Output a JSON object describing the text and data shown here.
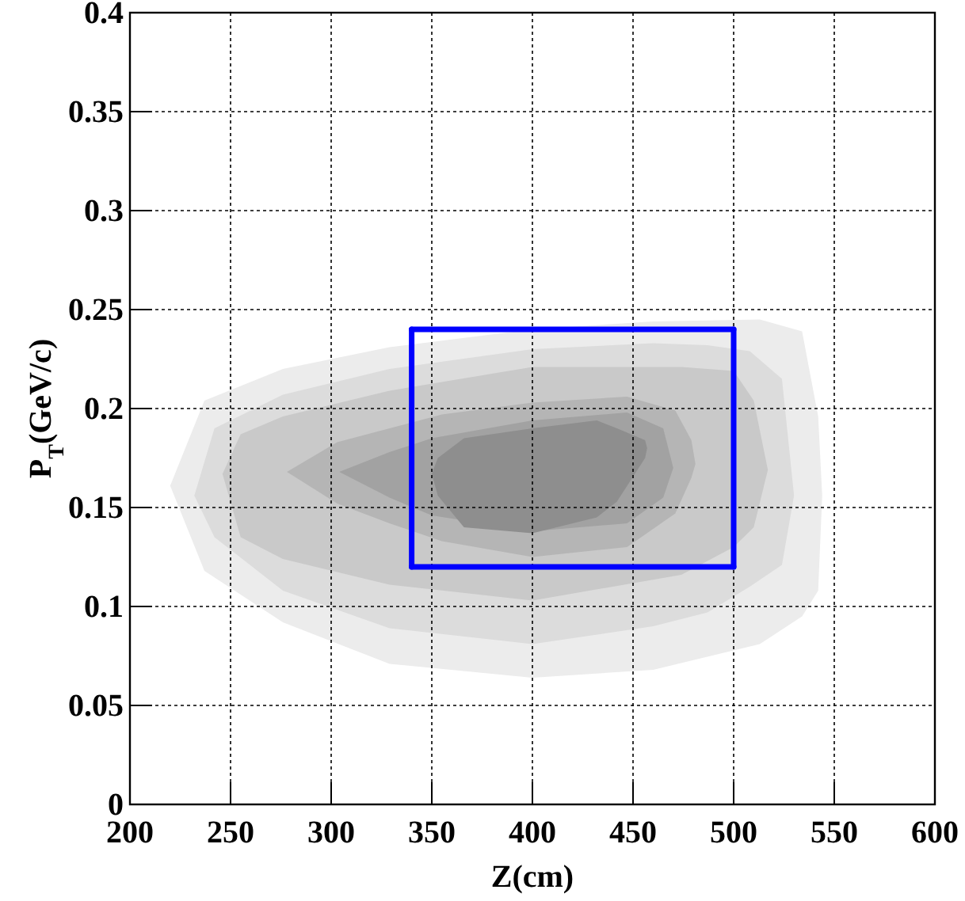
{
  "chart_data": {
    "type": "area",
    "xlabel": "Z(cm)",
    "ylabel": "P$_{T}$(GeV/c)",
    "xlim": [
      200,
      600
    ],
    "ylim": [
      0,
      0.4
    ],
    "xticks": [
      200,
      250,
      300,
      350,
      400,
      450,
      500,
      550,
      600
    ],
    "yticks": [
      0,
      0.05,
      0.1,
      0.15,
      0.2,
      0.25,
      0.3,
      0.35,
      0.4
    ],
    "grid": true,
    "series": [
      {
        "color": "#ececec",
        "x": [
          220,
          237,
          276,
          329,
          400,
          460,
          513,
          534,
          542,
          544,
          542,
          534,
          513,
          460,
          400,
          329,
          276,
          237
        ],
        "values": [
          0.161,
          0.204,
          0.22,
          0.231,
          0.24,
          0.244,
          0.245,
          0.239,
          0.196,
          0.156,
          0.108,
          0.095,
          0.081,
          0.068,
          0.064,
          0.071,
          0.092,
          0.118
        ]
      },
      {
        "color": "#dcdcdc",
        "x": [
          232,
          242,
          276,
          329,
          400,
          460,
          487,
          508,
          524,
          530,
          524,
          508,
          487,
          460,
          400,
          329,
          276,
          242
        ],
        "values": [
          0.156,
          0.19,
          0.207,
          0.22,
          0.23,
          0.233,
          0.232,
          0.229,
          0.215,
          0.156,
          0.121,
          0.11,
          0.097,
          0.09,
          0.081,
          0.089,
          0.108,
          0.135
        ]
      },
      {
        "color": "#c9c9c9",
        "x": [
          246,
          255,
          276,
          329,
          400,
          474,
          500,
          510,
          517,
          510,
          500,
          474,
          400,
          329,
          276,
          255
        ],
        "values": [
          0.167,
          0.187,
          0.196,
          0.209,
          0.221,
          0.221,
          0.219,
          0.204,
          0.169,
          0.14,
          0.13,
          0.116,
          0.103,
          0.111,
          0.124,
          0.135
        ]
      },
      {
        "color": "#b5b5b5",
        "x": [
          278,
          303,
          329,
          355,
          400,
          447,
          471,
          479,
          481,
          479,
          471,
          447,
          400,
          355,
          329,
          303
        ],
        "values": [
          0.168,
          0.183,
          0.19,
          0.197,
          0.203,
          0.206,
          0.199,
          0.184,
          0.172,
          0.165,
          0.147,
          0.13,
          0.125,
          0.133,
          0.142,
          0.152
        ]
      },
      {
        "color": "#a2a2a2",
        "x": [
          304,
          329,
          350,
          400,
          447,
          465,
          470,
          465,
          447,
          400,
          350,
          329
        ],
        "values": [
          0.168,
          0.178,
          0.185,
          0.194,
          0.198,
          0.19,
          0.17,
          0.155,
          0.142,
          0.138,
          0.146,
          0.155
        ]
      },
      {
        "color": "#8e8e8e",
        "x": [
          350,
          353,
          366,
          400,
          432,
          442,
          456,
          457,
          456,
          442,
          432,
          400,
          366,
          353
        ],
        "values": [
          0.167,
          0.175,
          0.185,
          0.19,
          0.194,
          0.19,
          0.184,
          0.18,
          0.175,
          0.153,
          0.145,
          0.137,
          0.14,
          0.156
        ]
      },
      {
        "type": "line",
        "color": "#0000ff",
        "x": [
          340,
          500
        ],
        "values": [
          0.12,
          0.12
        ]
      },
      {
        "type": "line",
        "color": "#0000ff",
        "x": [
          500,
          500
        ],
        "values": [
          0.12,
          0.24
        ]
      },
      {
        "type": "line",
        "color": "#0000ff",
        "x": [
          340,
          500
        ],
        "values": [
          0.24,
          0.24
        ]
      },
      {
        "type": "line",
        "color": "#0000ff",
        "x": [
          340,
          340
        ],
        "values": [
          0.12,
          0.24
        ]
      }
    ]
  }
}
